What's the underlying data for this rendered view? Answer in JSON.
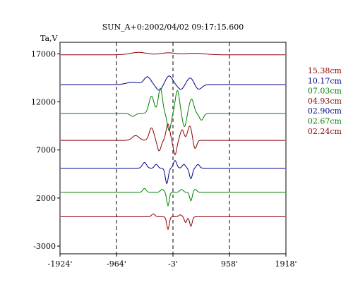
{
  "chart_data": {
    "type": "line",
    "title": "SUN_A+0:2002/04/02 09:17:15.600",
    "ylabel": "Ta,V",
    "x_ticks": [
      "-1924'",
      "-964'",
      "-3'",
      "958'",
      "1918'"
    ],
    "x_tick_values": [
      -1924,
      -964,
      -3,
      958,
      1918
    ],
    "y_ticks": [
      "17000",
      "12000",
      "7000",
      "2000",
      "-3000"
    ],
    "y_tick_values": [
      17000,
      12000,
      7000,
      2000,
      -3000
    ],
    "xlim": [
      -1924,
      1918
    ],
    "ylim": [
      -3000,
      17000
    ],
    "vlines_dashed": [
      -964,
      -3,
      958
    ],
    "colors": {
      "dark_red": "#8b0000",
      "dark_blue": "#00008b",
      "green": "#007f00"
    },
    "series": [
      {
        "name": "15.38cm",
        "color": "#8b0000",
        "baseline": 16900,
        "features": [
          {
            "x": -600,
            "a": 250,
            "w": 200
          },
          {
            "x": -100,
            "a": 200,
            "w": 180
          },
          {
            "x": 350,
            "a": 150,
            "w": 250
          }
        ]
      },
      {
        "name": "10.17cm",
        "color": "#00008b",
        "baseline": 13800,
        "features": [
          {
            "x": -700,
            "a": 250,
            "w": 150
          },
          {
            "x": -450,
            "a": 800,
            "w": 80
          },
          {
            "x": -250,
            "a": -600,
            "w": 70
          },
          {
            "x": -80,
            "a": 900,
            "w": 80
          },
          {
            "x": 120,
            "a": -500,
            "w": 70
          },
          {
            "x": 280,
            "a": 700,
            "w": 80
          },
          {
            "x": 420,
            "a": -500,
            "w": 80
          }
        ]
      },
      {
        "name": "07.03cm",
        "color": "#007f00",
        "baseline": 10800,
        "features": [
          {
            "x": -700,
            "a": -300,
            "w": 60
          },
          {
            "x": -380,
            "a": 1800,
            "w": 60
          },
          {
            "x": -230,
            "a": 2600,
            "w": 50
          },
          {
            "x": -80,
            "a": -1800,
            "w": 45
          },
          {
            "x": 60,
            "a": 2400,
            "w": 50
          },
          {
            "x": 180,
            "a": -1400,
            "w": 45
          },
          {
            "x": 300,
            "a": 1500,
            "w": 55
          },
          {
            "x": 470,
            "a": -700,
            "w": 50
          }
        ]
      },
      {
        "name": "04.93cm",
        "color": "#8b0000",
        "baseline": 8000,
        "features": [
          {
            "x": -650,
            "a": 500,
            "w": 80
          },
          {
            "x": -380,
            "a": 1300,
            "w": 55
          },
          {
            "x": -250,
            "a": -1100,
            "w": 45
          },
          {
            "x": -100,
            "a": 1700,
            "w": 45
          },
          {
            "x": 20,
            "a": -1500,
            "w": 40
          },
          {
            "x": 140,
            "a": 1100,
            "w": 45
          },
          {
            "x": 270,
            "a": 1500,
            "w": 50
          },
          {
            "x": 360,
            "a": -900,
            "w": 40
          }
        ]
      },
      {
        "name": "02.90cm",
        "color": "#00008b",
        "baseline": 5100,
        "features": [
          {
            "x": -500,
            "a": 600,
            "w": 50
          },
          {
            "x": -300,
            "a": 400,
            "w": 40
          },
          {
            "x": -120,
            "a": -1600,
            "w": 35
          },
          {
            "x": 20,
            "a": 800,
            "w": 40
          },
          {
            "x": 170,
            "a": 400,
            "w": 40
          },
          {
            "x": 290,
            "a": -1100,
            "w": 35
          },
          {
            "x": 410,
            "a": 400,
            "w": 40
          }
        ]
      },
      {
        "name": "02.67cm",
        "color": "#007f00",
        "baseline": 2600,
        "features": [
          {
            "x": -500,
            "a": 400,
            "w": 40
          },
          {
            "x": -200,
            "a": 300,
            "w": 40
          },
          {
            "x": -100,
            "a": -1400,
            "w": 30
          },
          {
            "x": 130,
            "a": 300,
            "w": 40
          },
          {
            "x": 290,
            "a": -900,
            "w": 30
          },
          {
            "x": 360,
            "a": 300,
            "w": 40
          }
        ]
      },
      {
        "name": "02.24cm",
        "color": "#8b0000",
        "baseline": 50,
        "features": [
          {
            "x": -350,
            "a": 300,
            "w": 40
          },
          {
            "x": -100,
            "a": -1300,
            "w": 30
          },
          {
            "x": 110,
            "a": 200,
            "w": 40
          },
          {
            "x": 200,
            "a": -600,
            "w": 30
          },
          {
            "x": 290,
            "a": -1000,
            "w": 30
          }
        ]
      }
    ]
  }
}
